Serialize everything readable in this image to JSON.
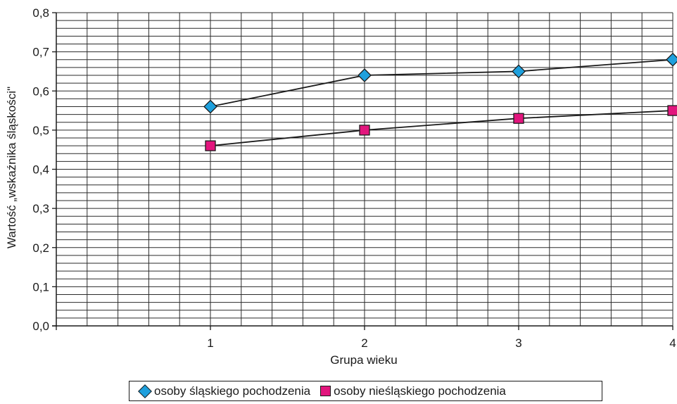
{
  "chart_data": {
    "type": "line",
    "xlabel": "Grupa wieku",
    "ylabel": "Wartość „wskaźnika śląskości\"",
    "ylim": [
      0,
      0.8
    ],
    "xlim": [
      0,
      4
    ],
    "x_ticks": [
      "1",
      "2",
      "3",
      "4"
    ],
    "y_ticks": [
      "0,0",
      "0,1",
      "0,2",
      "0,3",
      "0,4",
      "0,5",
      "0,6",
      "0,7",
      "0,8"
    ],
    "grid": true,
    "legend_position": "bottom",
    "series": [
      {
        "name": "osoby śląskiego pochodzenia",
        "marker": "diamond",
        "color": "#1ea0dd",
        "x": [
          1,
          2,
          3,
          4
        ],
        "values": [
          0.56,
          0.64,
          0.65,
          0.68
        ]
      },
      {
        "name": "osoby nieśląskiego pochodzenia",
        "marker": "square",
        "color": "#e2157d",
        "x": [
          1,
          2,
          3,
          4
        ],
        "values": [
          0.46,
          0.5,
          0.53,
          0.55
        ]
      }
    ]
  }
}
